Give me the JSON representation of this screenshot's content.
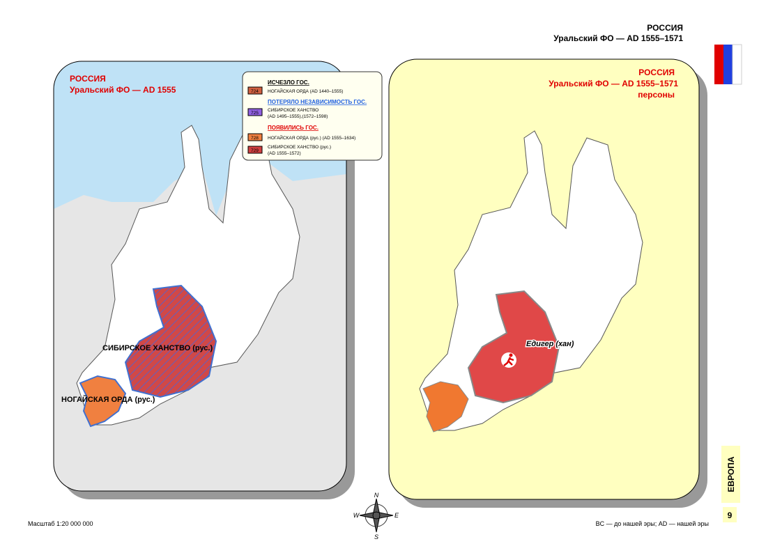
{
  "header": {
    "title": "РОССИЯ",
    "subtitle": "Уральский ФО — AD 1555–1571"
  },
  "left_map": {
    "title": "РОССИЯ",
    "subtitle": "Уральский ФО — AD 1555",
    "labels": [
      "СИБИРСКОЕ ХАНСТВО (рус.)",
      "НОГАЙСКАЯ ОРДА (рус.)"
    ]
  },
  "legend": {
    "groups": [
      {
        "heading": "ИСЧЕЗЛО ГОС.",
        "items": [
          {
            "code": "724",
            "text": [
              "НОГАЙСКАЯ ОРДА (AD 1440–1555)"
            ]
          }
        ]
      },
      {
        "heading": "ПОТЕРЯЛО НЕЗАВИСИМОСТЬ ГОС.",
        "items": [
          {
            "code": "725",
            "text": [
              "СИБИРСКОЕ ХАНСТВО",
              "(AD 1495–1555),(1572–1598)"
            ]
          }
        ]
      },
      {
        "heading": "ПОЯВИЛИСЬ ГОС.",
        "items": [
          {
            "code": "728",
            "text": [
              "НОГАЙСКАЯ ОРДА (рус.) (AD 1555–1634)"
            ]
          },
          {
            "code": "729",
            "text": [
              "СИБИРСКОЕ ХАНСТВО (рус.)",
              "(AD 1555–1572)"
            ]
          }
        ]
      }
    ]
  },
  "right_map": {
    "title": "РОССИЯ",
    "subtitle": "Уральский ФО — AD 1555–1571",
    "caption": "персоны",
    "person": "Едигер (хан)"
  },
  "compass": [
    "N",
    "W",
    "E",
    "S"
  ],
  "side": {
    "region": "ЕВРОПА",
    "page": "9"
  },
  "footer": {
    "scale": "Масштаб 1:20 000 000",
    "note": "BC — до нашей эры; AD — нашей эры"
  }
}
